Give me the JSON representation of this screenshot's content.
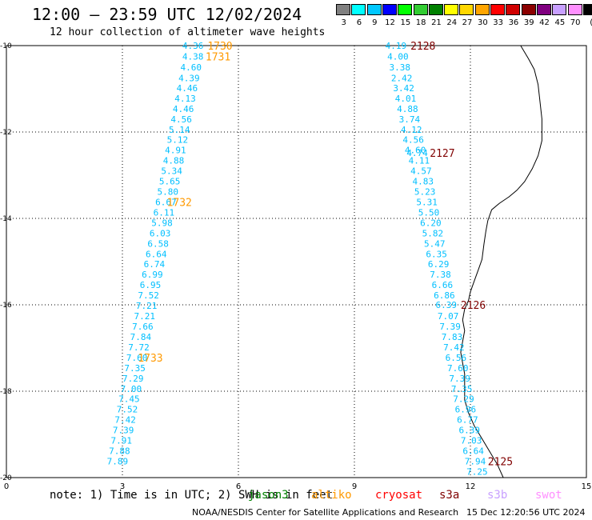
{
  "title": "12:00 — 23:59 UTC 12/02/2024",
  "subtitle": "12 hour collection of altimeter wave heights",
  "legend": {
    "unit": "(ft)",
    "items": [
      {
        "label": "3",
        "color": "#808080"
      },
      {
        "label": "6",
        "color": "#00ffff"
      },
      {
        "label": "9",
        "color": "#00c8ff"
      },
      {
        "label": "12",
        "color": "#0000ff"
      },
      {
        "label": "15",
        "color": "#00ff00"
      },
      {
        "label": "18",
        "color": "#32cd32"
      },
      {
        "label": "21",
        "color": "#008000"
      },
      {
        "label": "24",
        "color": "#ffff00"
      },
      {
        "label": "27",
        "color": "#ffd700"
      },
      {
        "label": "30",
        "color": "#ffa500"
      },
      {
        "label": "33",
        "color": "#ff0000"
      },
      {
        "label": "36",
        "color": "#d00000"
      },
      {
        "label": "39",
        "color": "#8b0000"
      },
      {
        "label": "42",
        "color": "#800080"
      },
      {
        "label": "45",
        "color": "#c8a0ff"
      },
      {
        "label": "70",
        "color": "#ff90ff"
      },
      {
        "label": "",
        "color": "#000000"
      }
    ]
  },
  "axes": {
    "x_ticks": [
      "0",
      "3",
      "6",
      "9",
      "12",
      "15"
    ],
    "y_ticks": [
      "-10",
      "-12",
      "-14",
      "-16",
      "-18",
      "-20"
    ],
    "x_range": [
      0,
      15
    ],
    "y_range": [
      -10,
      -20
    ],
    "grid": true
  },
  "track_left": {
    "color": "#00bfff",
    "points": [
      {
        "x": 4.55,
        "y": -10.0,
        "v": "4.36"
      },
      {
        "x": 4.55,
        "y": -10.25,
        "v": "4.38"
      },
      {
        "x": 4.5,
        "y": -10.5,
        "v": "4.60"
      },
      {
        "x": 4.45,
        "y": -10.75,
        "v": "4.39"
      },
      {
        "x": 4.4,
        "y": -10.98,
        "v": "4.46"
      },
      {
        "x": 4.35,
        "y": -11.22,
        "v": "4.13"
      },
      {
        "x": 4.3,
        "y": -11.46,
        "v": "4.46"
      },
      {
        "x": 4.25,
        "y": -11.7,
        "v": "4.56"
      },
      {
        "x": 4.2,
        "y": -11.94,
        "v": "5.14"
      },
      {
        "x": 4.15,
        "y": -12.18,
        "v": "5.12"
      },
      {
        "x": 4.1,
        "y": -12.42,
        "v": "4.91"
      },
      {
        "x": 4.05,
        "y": -12.66,
        "v": "4.88"
      },
      {
        "x": 4.0,
        "y": -12.9,
        "v": "5.34"
      },
      {
        "x": 3.95,
        "y": -13.14,
        "v": "5.65"
      },
      {
        "x": 3.9,
        "y": -13.38,
        "v": "5.80"
      },
      {
        "x": 3.85,
        "y": -13.62,
        "v": "6.67"
      },
      {
        "x": 3.8,
        "y": -13.86,
        "v": "6.11"
      },
      {
        "x": 3.75,
        "y": -14.1,
        "v": "5.98"
      },
      {
        "x": 3.7,
        "y": -14.34,
        "v": "6.03"
      },
      {
        "x": 3.65,
        "y": -14.58,
        "v": "6.58"
      },
      {
        "x": 3.6,
        "y": -14.82,
        "v": "6.64"
      },
      {
        "x": 3.55,
        "y": -15.06,
        "v": "6.74"
      },
      {
        "x": 3.5,
        "y": -15.3,
        "v": "6.99"
      },
      {
        "x": 3.45,
        "y": -15.54,
        "v": "6.95"
      },
      {
        "x": 3.4,
        "y": -15.78,
        "v": "7.52"
      },
      {
        "x": 3.35,
        "y": -16.02,
        "v": "7.21"
      },
      {
        "x": 3.3,
        "y": -16.26,
        "v": "7.21"
      },
      {
        "x": 3.25,
        "y": -16.5,
        "v": "7.66"
      },
      {
        "x": 3.2,
        "y": -16.74,
        "v": "7.84"
      },
      {
        "x": 3.15,
        "y": -16.98,
        "v": "7.72"
      },
      {
        "x": 3.1,
        "y": -17.22,
        "v": "7.60"
      },
      {
        "x": 3.05,
        "y": -17.46,
        "v": "7.35"
      },
      {
        "x": 3.0,
        "y": -17.7,
        "v": "7.29"
      },
      {
        "x": 2.95,
        "y": -17.94,
        "v": "7.00"
      },
      {
        "x": 2.9,
        "y": -18.18,
        "v": "7.45"
      },
      {
        "x": 2.85,
        "y": -18.42,
        "v": "7.52"
      },
      {
        "x": 2.8,
        "y": -18.66,
        "v": "7.42"
      },
      {
        "x": 2.75,
        "y": -18.9,
        "v": "7.39"
      },
      {
        "x": 2.7,
        "y": -19.14,
        "v": "7.91"
      },
      {
        "x": 2.65,
        "y": -19.38,
        "v": "7.88"
      },
      {
        "x": 2.6,
        "y": -19.62,
        "v": "7.89"
      }
    ],
    "time_labels": [
      {
        "x": 5.2,
        "y": -10.0,
        "t": "1730"
      },
      {
        "x": 5.15,
        "y": -10.25,
        "t": "1731"
      },
      {
        "x": 4.15,
        "y": -13.62,
        "t": "1732"
      },
      {
        "x": 3.4,
        "y": -17.22,
        "t": "1733"
      }
    ]
  },
  "track_right": {
    "color": "#00bfff",
    "points": [
      {
        "x": 9.8,
        "y": -10.0,
        "v": "4.19"
      },
      {
        "x": 9.85,
        "y": -10.25,
        "v": "4.00"
      },
      {
        "x": 9.9,
        "y": -10.5,
        "v": "3.38"
      },
      {
        "x": 9.95,
        "y": -10.75,
        "v": "2.42"
      },
      {
        "x": 10.0,
        "y": -10.98,
        "v": "3.42"
      },
      {
        "x": 10.05,
        "y": -11.22,
        "v": "4.01"
      },
      {
        "x": 10.1,
        "y": -11.46,
        "v": "4.88"
      },
      {
        "x": 10.15,
        "y": -11.7,
        "v": "3.74"
      },
      {
        "x": 10.2,
        "y": -11.94,
        "v": "4.12"
      },
      {
        "x": 10.25,
        "y": -12.18,
        "v": "4.56"
      },
      {
        "x": 10.3,
        "y": -12.42,
        "v": "4.60"
      },
      {
        "x": 10.35,
        "y": -12.48,
        "v": "4.74"
      },
      {
        "x": 10.4,
        "y": -12.66,
        "v": "4.11"
      },
      {
        "x": 10.45,
        "y": -12.9,
        "v": "4.57"
      },
      {
        "x": 10.5,
        "y": -13.14,
        "v": "4.83"
      },
      {
        "x": 10.55,
        "y": -13.38,
        "v": "5.23"
      },
      {
        "x": 10.6,
        "y": -13.62,
        "v": "5.31"
      },
      {
        "x": 10.65,
        "y": -13.86,
        "v": "5.50"
      },
      {
        "x": 10.7,
        "y": -14.1,
        "v": "6.20"
      },
      {
        "x": 10.75,
        "y": -14.34,
        "v": "5.82"
      },
      {
        "x": 10.8,
        "y": -14.58,
        "v": "5.47"
      },
      {
        "x": 10.85,
        "y": -14.82,
        "v": "6.35"
      },
      {
        "x": 10.9,
        "y": -15.06,
        "v": "6.29"
      },
      {
        "x": 10.95,
        "y": -15.3,
        "v": "7.38"
      },
      {
        "x": 11.0,
        "y": -15.54,
        "v": "6.66"
      },
      {
        "x": 11.05,
        "y": -15.78,
        "v": "6.86"
      },
      {
        "x": 11.1,
        "y": -16.0,
        "v": "6.39"
      },
      {
        "x": 11.15,
        "y": -16.26,
        "v": "7.07"
      },
      {
        "x": 11.2,
        "y": -16.5,
        "v": "7.39"
      },
      {
        "x": 11.25,
        "y": -16.74,
        "v": "7.83"
      },
      {
        "x": 11.3,
        "y": -16.98,
        "v": "7.42"
      },
      {
        "x": 11.35,
        "y": -17.22,
        "v": "6.56"
      },
      {
        "x": 11.4,
        "y": -17.46,
        "v": "7.60"
      },
      {
        "x": 11.45,
        "y": -17.7,
        "v": "7.39"
      },
      {
        "x": 11.5,
        "y": -17.94,
        "v": "7.35"
      },
      {
        "x": 11.55,
        "y": -18.18,
        "v": "7.29"
      },
      {
        "x": 11.6,
        "y": -18.42,
        "v": "6.96"
      },
      {
        "x": 11.65,
        "y": -18.66,
        "v": "6.77"
      },
      {
        "x": 11.7,
        "y": -18.9,
        "v": "6.39"
      },
      {
        "x": 11.75,
        "y": -19.14,
        "v": "7.03"
      },
      {
        "x": 11.8,
        "y": -19.38,
        "v": "6.64"
      },
      {
        "x": 11.85,
        "y": -19.62,
        "v": "7.94"
      },
      {
        "x": 11.9,
        "y": -19.86,
        "v": "7.25"
      }
    ],
    "time_labels": [
      {
        "x": 10.45,
        "y": -10.0,
        "t": "2128"
      },
      {
        "x": 10.95,
        "y": -12.48,
        "t": "2127"
      },
      {
        "x": 11.75,
        "y": -16.0,
        "t": "2126"
      },
      {
        "x": 12.45,
        "y": -19.62,
        "t": "2125"
      }
    ]
  },
  "time_label_colors": {
    "left": "#ff9900",
    "right": "#800000"
  },
  "coastline": [
    [
      13.3,
      -10.0
    ],
    [
      13.5,
      -10.3
    ],
    [
      13.65,
      -10.55
    ],
    [
      13.75,
      -10.9
    ],
    [
      13.8,
      -11.3
    ],
    [
      13.85,
      -11.7
    ],
    [
      13.85,
      -12.2
    ],
    [
      13.75,
      -12.55
    ],
    [
      13.6,
      -12.85
    ],
    [
      13.4,
      -13.15
    ],
    [
      13.2,
      -13.35
    ],
    [
      13.0,
      -13.5
    ],
    [
      12.75,
      -13.65
    ],
    [
      12.55,
      -13.8
    ],
    [
      12.45,
      -14.05
    ],
    [
      12.4,
      -14.3
    ],
    [
      12.35,
      -14.6
    ],
    [
      12.3,
      -14.95
    ],
    [
      12.2,
      -15.2
    ],
    [
      12.1,
      -15.45
    ],
    [
      12.0,
      -15.7
    ],
    [
      11.95,
      -15.9
    ],
    [
      11.85,
      -16.1
    ],
    [
      11.8,
      -16.35
    ],
    [
      11.85,
      -16.6
    ],
    [
      11.8,
      -16.85
    ],
    [
      11.75,
      -17.1
    ],
    [
      11.8,
      -17.35
    ],
    [
      11.85,
      -17.6
    ],
    [
      11.85,
      -17.9
    ],
    [
      11.85,
      -18.2
    ],
    [
      11.95,
      -18.5
    ],
    [
      12.1,
      -18.8
    ],
    [
      12.3,
      -19.1
    ],
    [
      12.5,
      -19.4
    ],
    [
      12.7,
      -19.7
    ],
    [
      12.85,
      -20.0
    ]
  ],
  "note": {
    "text": "note: 1) Time is in UTC; 2) SWH is in feet",
    "satellites": [
      {
        "name": "jason3",
        "color": "#008000"
      },
      {
        "name": "altiko",
        "color": "#ff9900"
      },
      {
        "name": "cryosat",
        "color": "#ff0000"
      },
      {
        "name": "s3a",
        "color": "#800000"
      },
      {
        "name": "s3b",
        "color": "#c8a0ff"
      },
      {
        "name": "swot",
        "color": "#ff90ff"
      }
    ]
  },
  "footer": {
    "credit": "NOAA/NESDIS Center for Satellite Applications and Research",
    "timestamp": "15 Dec 12:20:56 UTC 2024"
  }
}
